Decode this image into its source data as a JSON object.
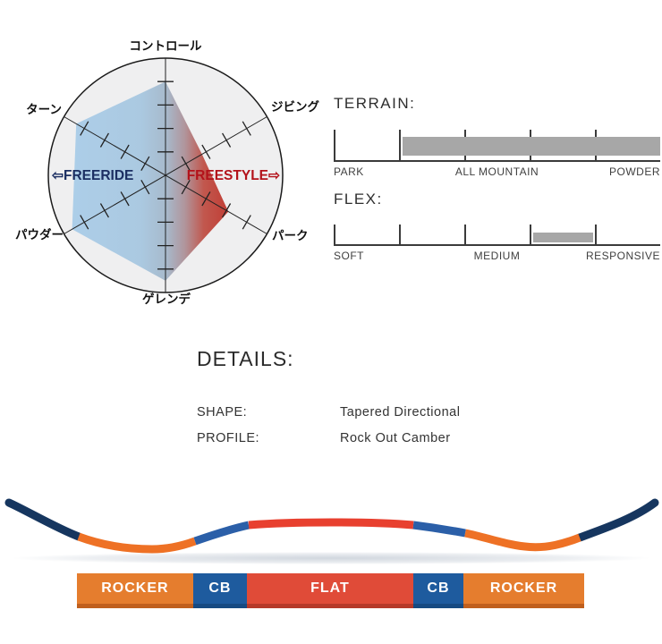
{
  "radar": {
    "axes": [
      "コントロール",
      "ジビング",
      "パーク",
      "ゲレンデ",
      "パウダー",
      "ターン"
    ],
    "freeride_label": "⇦FREERIDE",
    "freestyle_label": "FREESTYLE⇨",
    "freeride_color": "#1B2E62",
    "freestyle_color": "#B3121A",
    "circle_fill": "#EFEFF0"
  },
  "chart_data": [
    {
      "type": "radar",
      "categories": [
        "コントロール",
        "ジビング",
        "パーク",
        "ゲレンデ",
        "パウダー",
        "ターン"
      ],
      "values": [
        4.0,
        1.8,
        3.1,
        4.5,
        4.6,
        4.4
      ],
      "scale_max": 5,
      "left_label": "FREERIDE",
      "right_label": "FREESTYLE",
      "fill_left_color": "#A9CCE8",
      "fill_right_color": "#BE342B"
    },
    {
      "type": "range-bar",
      "title": "TERRAIN:",
      "axis_labels": [
        "PARK",
        "ALL MOUNTAIN",
        "POWDER"
      ],
      "range_pct": [
        21,
        100
      ],
      "bar_color": "#A7A7A7"
    },
    {
      "type": "range-bar",
      "title": "FLEX:",
      "axis_labels": [
        "SOFT",
        "MEDIUM",
        "RESPONSIVE"
      ],
      "range_pct": [
        61,
        79.5
      ],
      "bar_color": "#A7A7A7"
    }
  ],
  "terrain": {
    "title": "TERRAIN:",
    "labels": [
      "PARK",
      "ALL MOUNTAIN",
      "POWDER"
    ],
    "bar_start_pct": 21,
    "bar_end_pct": 100,
    "bar_color": "#A7A7A7"
  },
  "flex": {
    "title": "FLEX:",
    "labels": [
      "SOFT",
      "MEDIUM",
      "RESPONSIVE"
    ],
    "bar_start_pct": 61,
    "bar_end_pct": 79.5,
    "bar_color": "#A7A7A7"
  },
  "details": {
    "title": "DETAILS:",
    "rows": [
      {
        "label": "SHAPE:",
        "value": "Tapered Directional"
      },
      {
        "label": "PROFILE:",
        "value": "Rock Out Camber"
      }
    ]
  },
  "board": {
    "colors": {
      "navy": "#16365F",
      "orange": "#EE7125",
      "blue": "#2B5FA8",
      "red": "#E8402F"
    }
  },
  "profile_bar": {
    "segments": [
      {
        "label": "ROCKER",
        "color": "#E57D2E",
        "edge": "#C05F1D",
        "width_pct": 22.9
      },
      {
        "label": "CB",
        "color": "#1E5B9E",
        "edge": "#164A82",
        "width_pct": 10.6
      },
      {
        "label": "FLAT",
        "color": "#E04B38",
        "edge": "#B63929",
        "width_pct": 32.8
      },
      {
        "label": "CB",
        "color": "#1E5B9E",
        "edge": "#164A82",
        "width_pct": 9.9
      },
      {
        "label": "ROCKER",
        "color": "#E57D2E",
        "edge": "#C05F1D",
        "width_pct": 23.8
      }
    ]
  }
}
